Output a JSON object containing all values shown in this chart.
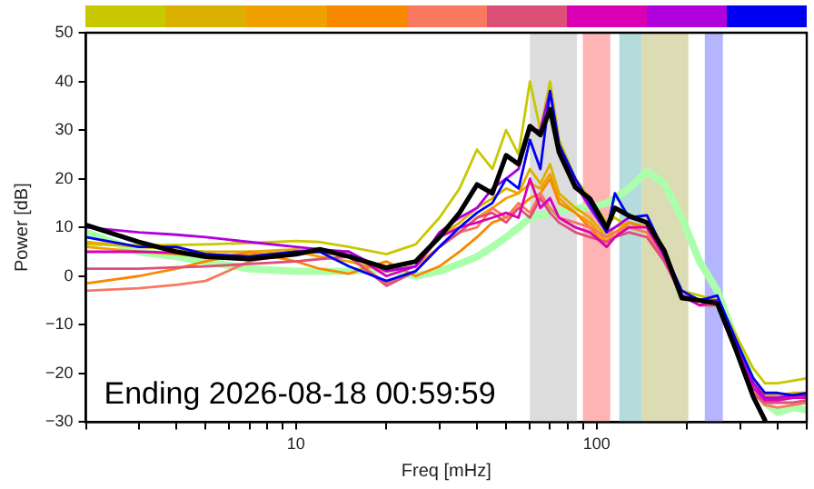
{
  "chart_data": {
    "type": "line",
    "xlabel": "Freq [mHz]",
    "ylabel": "Power [dB]",
    "annotations": [
      "Ending 2026-08-18 00:59:59"
    ],
    "log": "x",
    "grid": false,
    "legend": false,
    "marker": "none",
    "line_style": "solid",
    "xlim": [
      2,
      500
    ],
    "ylim": [
      -30,
      50
    ],
    "xticks": [
      {
        "value": 2,
        "label": null
      },
      {
        "value": 3,
        "label": null
      },
      {
        "value": 4,
        "label": null
      },
      {
        "value": 5,
        "label": null
      },
      {
        "value": 6,
        "label": null
      },
      {
        "value": 7,
        "label": null
      },
      {
        "value": 8,
        "label": null
      },
      {
        "value": 9,
        "label": null
      },
      10,
      {
        "value": 20,
        "label": null
      },
      {
        "value": 30,
        "label": null
      },
      {
        "value": 40,
        "label": null
      },
      {
        "value": 50,
        "label": null
      },
      {
        "value": 60,
        "label": null
      },
      {
        "value": 70,
        "label": null
      },
      {
        "value": 80,
        "label": null
      },
      {
        "value": 90,
        "label": null
      },
      100,
      {
        "value": 200,
        "label": null
      },
      {
        "value": 300,
        "label": null
      },
      {
        "value": 400,
        "label": null
      },
      {
        "value": 500,
        "label": null
      }
    ],
    "yticks": [
      {
        "value": -30,
        "label": "−30"
      },
      {
        "value": -20,
        "label": "−20"
      },
      {
        "value": -10,
        "label": "−10"
      },
      0,
      10,
      20,
      30,
      40,
      50
    ],
    "bands": [
      {
        "axis": "x",
        "from": 60,
        "to": 86,
        "color": "#dcdcdc"
      },
      {
        "axis": "x",
        "from": 90,
        "to": 111,
        "color": "#ffb4b4"
      },
      {
        "axis": "x",
        "from": 119,
        "to": 141,
        "color": "#b4dcdc"
      },
      {
        "axis": "x",
        "from": 141,
        "to": 202,
        "color": "#dcdcb4"
      },
      {
        "axis": "x",
        "from": 229,
        "to": 263,
        "color": "#b4b4ff"
      }
    ],
    "x": [
      2,
      3,
      4,
      5,
      7,
      10,
      12,
      15,
      20,
      25,
      30,
      35,
      40,
      45,
      50,
      55,
      60,
      65,
      70,
      75,
      85,
      95,
      108,
      115,
      128,
      147,
      168,
      192,
      220,
      252,
      290,
      332,
      363,
      400,
      450,
      500
    ],
    "series": [
      {
        "color": "#aaffaa",
        "values": [
          9,
          5,
          4,
          3,
          1.5,
          1,
          1,
          1,
          1.5,
          0,
          1,
          2.5,
          4,
          6,
          8,
          10,
          12,
          12.5,
          13,
          13.5,
          14,
          14,
          15,
          16,
          18,
          21.5,
          19,
          12,
          3,
          -3,
          -13,
          -22,
          -26,
          -28,
          -27,
          -27.5
        ]
      },
      {
        "color": "#c8c800",
        "values": [
          6.5,
          6.3,
          6.4,
          6.5,
          6.8,
          7.2,
          7,
          6,
          4.5,
          6.5,
          12,
          18,
          26,
          22,
          30,
          25,
          40,
          30,
          40,
          28,
          20,
          16,
          11,
          12,
          10,
          9,
          3,
          -3,
          -4,
          -5,
          -12,
          -19,
          -22,
          -22,
          -21.5,
          -21
        ]
      },
      {
        "color": "#dcb000",
        "values": [
          7,
          6,
          5.5,
          5,
          5,
          5.5,
          5,
          4,
          2,
          3,
          8,
          11,
          14,
          16,
          18,
          17,
          22,
          19,
          23,
          17,
          14,
          12,
          8,
          10,
          11,
          10,
          4,
          -4,
          -5,
          -5,
          -14,
          -22,
          -24.5,
          -24.5,
          -24,
          -24
        ]
      },
      {
        "color": "#f0a000",
        "values": [
          6,
          5,
          4.5,
          4,
          4.5,
          5,
          4,
          3,
          1,
          2,
          6,
          9,
          12,
          14,
          16,
          17,
          19,
          18,
          21,
          16,
          13,
          11,
          7,
          9,
          11,
          10,
          4,
          -3,
          -5,
          -5,
          -13,
          -22,
          -24.5,
          -25,
          -24.5,
          -24.5
        ]
      },
      {
        "color": "#f88800",
        "values": [
          -1.5,
          0,
          1.5,
          3,
          5,
          3,
          1.5,
          0.5,
          3,
          0,
          2,
          5,
          8,
          11,
          12,
          14,
          16,
          17,
          20,
          15,
          13,
          10,
          6,
          8,
          11,
          10,
          4,
          -3,
          -5,
          -5,
          -13,
          -22,
          -25,
          -25.5,
          -25,
          -25
        ]
      },
      {
        "color": "#f87860",
        "values": [
          -3,
          -2.5,
          -1.8,
          -1,
          3,
          5,
          5,
          4,
          -1.5,
          1,
          6,
          9,
          10,
          14,
          12,
          15,
          13,
          17,
          14,
          12,
          11,
          10,
          8,
          9,
          10,
          9,
          3,
          -4,
          -6,
          -6,
          -15,
          -24,
          -26.5,
          -27,
          -26.5,
          -26
        ]
      },
      {
        "color": "#dc5078",
        "values": [
          1.5,
          1.5,
          1.8,
          2,
          2.5,
          3,
          3.5,
          4,
          -2,
          1,
          6,
          9,
          12,
          13,
          11,
          14,
          12,
          16,
          13,
          11,
          9,
          8,
          7,
          8,
          9,
          8,
          3,
          -4,
          -6,
          -6,
          -15,
          -24,
          -26,
          -26,
          -26,
          -25.5
        ]
      },
      {
        "color": "#dc00b4",
        "values": [
          5,
          5,
          4.8,
          4.5,
          4,
          5,
          5,
          5,
          0,
          2,
          8,
          10,
          11,
          12,
          13,
          12,
          20,
          14,
          16,
          12,
          10,
          9,
          6,
          8,
          10,
          10,
          4,
          -4,
          -6,
          -5,
          -14,
          -23,
          -25.5,
          -25.5,
          -25,
          -25
        ]
      },
      {
        "color": "#b000dc",
        "values": [
          10,
          9,
          8.5,
          8,
          7,
          6,
          5.5,
          5,
          1,
          2,
          9,
          12,
          14,
          18,
          20,
          22,
          30,
          30,
          38,
          27,
          19,
          14,
          9,
          10,
          12,
          11,
          4,
          -4,
          -5,
          -5,
          -14,
          -22,
          -25,
          -25,
          -24.5,
          -24.5
        ]
      },
      {
        "color": "#0000f0",
        "values": [
          8,
          6,
          6,
          4.5,
          4,
          5,
          5,
          2,
          -1,
          1,
          6,
          10,
          13,
          15,
          20,
          18,
          28,
          22,
          38,
          27,
          20,
          15,
          9,
          17,
          12,
          12.5,
          5,
          -3,
          -5,
          -4,
          -13,
          -21,
          -24,
          -24,
          -24.5,
          -24
        ]
      },
      {
        "color": "#000000",
        "values": [
          10.5,
          7,
          5,
          4,
          3.5,
          4.5,
          5.5,
          4,
          1.7,
          3,
          8,
          13,
          18.8,
          17,
          24.8,
          23,
          30.8,
          29,
          34.3,
          25.4,
          18.2,
          15.9,
          9.9,
          14,
          12.4,
          11,
          5.2,
          -4.5,
          -5,
          -5.6,
          -15,
          -24.8,
          -29.6,
          null,
          null,
          null
        ]
      }
    ]
  }
}
